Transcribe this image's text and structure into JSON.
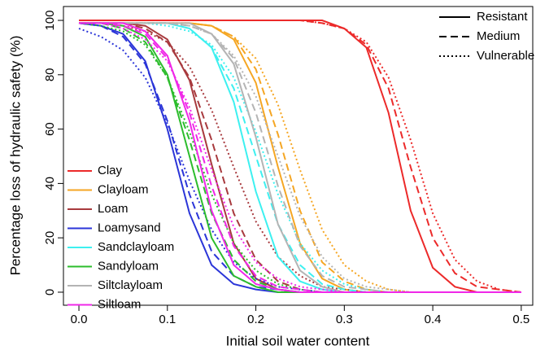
{
  "chart_data": {
    "type": "line",
    "xlabel": "Initial soil water content",
    "ylabel": "Percentage loss of hydraulic safety (%)",
    "xlim": [
      -0.0175,
      0.513
    ],
    "ylim": [
      -4.8,
      105.1
    ],
    "xticks": [
      {
        "value": 0,
        "label": "0.0"
      },
      0.1,
      0.2,
      0.3,
      0.4,
      0.5
    ],
    "yticks": [
      0,
      20,
      40,
      60,
      80,
      100
    ],
    "line_styles": [
      "Resistant",
      "Medium",
      "Vulnerable"
    ],
    "x": [
      0,
      0.025,
      0.05,
      0.075,
      0.1,
      0.125,
      0.15,
      0.175,
      0.2,
      0.225,
      0.25,
      0.275,
      0.3,
      0.325,
      0.35,
      0.375,
      0.4,
      0.425,
      0.45,
      0.475,
      0.5
    ],
    "series": [
      {
        "name": "Clay",
        "color": "#ec2a2a",
        "curves": [
          {
            "values": [
              100,
              100,
              100,
              100,
              100,
              100,
              100,
              100,
              100,
              100,
              100,
              100,
              97,
              90,
              66,
              30,
              9,
              2,
              0,
              0,
              0
            ]
          },
          {
            "values": [
              100,
              100,
              100,
              100,
              100,
              100,
              100,
              100,
              100,
              100,
              100,
              99,
              97,
              91,
              75,
              46,
              20,
              7,
              2,
              1,
              0
            ]
          },
          {
            "values": [
              100,
              100,
              100,
              100,
              100,
              100,
              100,
              100,
              100,
              100,
              100,
              99,
              97,
              92,
              79,
              56,
              29,
              12,
              4,
              1,
              0
            ]
          }
        ]
      },
      {
        "name": "Clayloam",
        "color": "#f5a623",
        "curves": [
          {
            "values": [
              99,
              99,
              99,
              99,
              99,
              99,
              98,
              93,
              77,
              46,
              18,
              5,
              1,
              0,
              0,
              0,
              0,
              0,
              0,
              0,
              0
            ]
          },
          {
            "values": [
              99,
              99,
              99,
              99,
              99,
              99,
              98,
              94,
              82,
              58,
              30,
              11,
              4,
              1,
              0,
              0,
              0,
              0,
              0,
              0,
              0
            ]
          },
          {
            "values": [
              99,
              99,
              99,
              99,
              99,
              99,
              98,
              94,
              86,
              69,
              45,
              23,
              10,
              4,
              1,
              0,
              0,
              0,
              0,
              0,
              0
            ]
          }
        ]
      },
      {
        "name": "Loam",
        "color": "#a83a3e",
        "curves": [
          {
            "values": [
              99,
              99,
              99,
              98,
              93,
              78,
              47,
              18,
              5,
              1,
              0,
              0,
              0,
              0,
              0,
              0,
              0,
              0,
              0,
              0,
              0
            ]
          },
          {
            "values": [
              99,
              99,
              99,
              97,
              92,
              79,
              56,
              29,
              12,
              4,
              1,
              0,
              0,
              0,
              0,
              0,
              0,
              0,
              0,
              0,
              0
            ]
          },
          {
            "values": [
              99,
              99,
              98,
              96,
              92,
              83,
              67,
              46,
              26,
              13,
              6,
              2,
              1,
              0,
              0,
              0,
              0,
              0,
              0,
              0,
              0
            ]
          }
        ]
      },
      {
        "name": "Loamysand",
        "color": "#2b35d8",
        "curves": [
          {
            "values": [
              99,
              98,
              95,
              85,
              60,
              29,
              10,
              3,
              1,
              0,
              0,
              0,
              0,
              0,
              0,
              0,
              0,
              0,
              0,
              0,
              0
            ]
          },
          {
            "values": [
              99,
              98,
              94,
              84,
              63,
              36,
              15,
              6,
              2,
              1,
              0,
              0,
              0,
              0,
              0,
              0,
              0,
              0,
              0,
              0,
              0
            ]
          },
          {
            "values": [
              97,
              94,
              89,
              79,
              62,
              41,
              23,
              11,
              5,
              2,
              1,
              0,
              0,
              0,
              0,
              0,
              0,
              0,
              0,
              0,
              0
            ]
          }
        ]
      },
      {
        "name": "Sandclayloam",
        "color": "#3df0f0",
        "curves": [
          {
            "values": [
              99,
              99,
              99,
              99,
              99,
              97,
              90,
              70,
              37,
              13,
              4,
              1,
              0,
              0,
              0,
              0,
              0,
              0,
              0,
              0,
              0
            ]
          },
          {
            "values": [
              99,
              99,
              99,
              99,
              99,
              97,
              90,
              75,
              50,
              25,
              10,
              3,
              1,
              0,
              0,
              0,
              0,
              0,
              0,
              0,
              0
            ]
          },
          {
            "values": [
              99,
              99,
              99,
              99,
              98,
              96,
              91,
              79,
              59,
              36,
              18,
              8,
              3,
              1,
              0,
              0,
              0,
              0,
              0,
              0,
              0
            ]
          }
        ]
      },
      {
        "name": "Sandyloam",
        "color": "#2dbd2d",
        "curves": [
          {
            "values": [
              99,
              99,
              98,
              94,
              80,
              50,
              20,
              6,
              2,
              0,
              0,
              0,
              0,
              0,
              0,
              0,
              0,
              0,
              0,
              0,
              0
            ]
          },
          {
            "values": [
              99,
              99,
              97,
              92,
              79,
              56,
              29,
              12,
              4,
              1,
              0,
              0,
              0,
              0,
              0,
              0,
              0,
              0,
              0,
              0,
              0
            ]
          },
          {
            "values": [
              99,
              98,
              96,
              91,
              79,
              59,
              36,
              18,
              8,
              3,
              1,
              0,
              0,
              0,
              0,
              0,
              0,
              0,
              0,
              0,
              0
            ]
          }
        ]
      },
      {
        "name": "Siltclayloam",
        "color": "#b4b4b4",
        "curves": [
          {
            "values": [
              99,
              99,
              99,
              99,
              99,
              99,
              95,
              84,
              57,
              25,
              8,
              2,
              0,
              0,
              0,
              0,
              0,
              0,
              0,
              0,
              0
            ]
          },
          {
            "values": [
              99,
              99,
              99,
              99,
              99,
              98,
              95,
              86,
              66,
              39,
              17,
              6,
              2,
              1,
              0,
              0,
              0,
              0,
              0,
              0,
              0
            ]
          },
          {
            "values": [
              99,
              99,
              99,
              99,
              99,
              98,
              95,
              87,
              72,
              50,
              28,
              13,
              5,
              2,
              1,
              0,
              0,
              0,
              0,
              0,
              0
            ]
          }
        ]
      },
      {
        "name": "Siltloam",
        "color": "#f028e8",
        "curves": [
          {
            "values": [
              99,
              99,
              99,
              96,
              87,
              63,
              30,
              10,
              3,
              1,
              0,
              0,
              0,
              0,
              0,
              0,
              0,
              0,
              0,
              0,
              0
            ]
          },
          {
            "values": [
              99,
              99,
              98,
              95,
              86,
              66,
              39,
              17,
              6,
              2,
              1,
              0,
              0,
              0,
              0,
              0,
              0,
              0,
              0,
              0,
              0
            ]
          },
          {
            "values": [
              99,
              99,
              97,
              93,
              85,
              68,
              45,
              24,
              11,
              5,
              2,
              1,
              0,
              0,
              0,
              0,
              0,
              0,
              0,
              0,
              0
            ]
          }
        ]
      }
    ]
  }
}
